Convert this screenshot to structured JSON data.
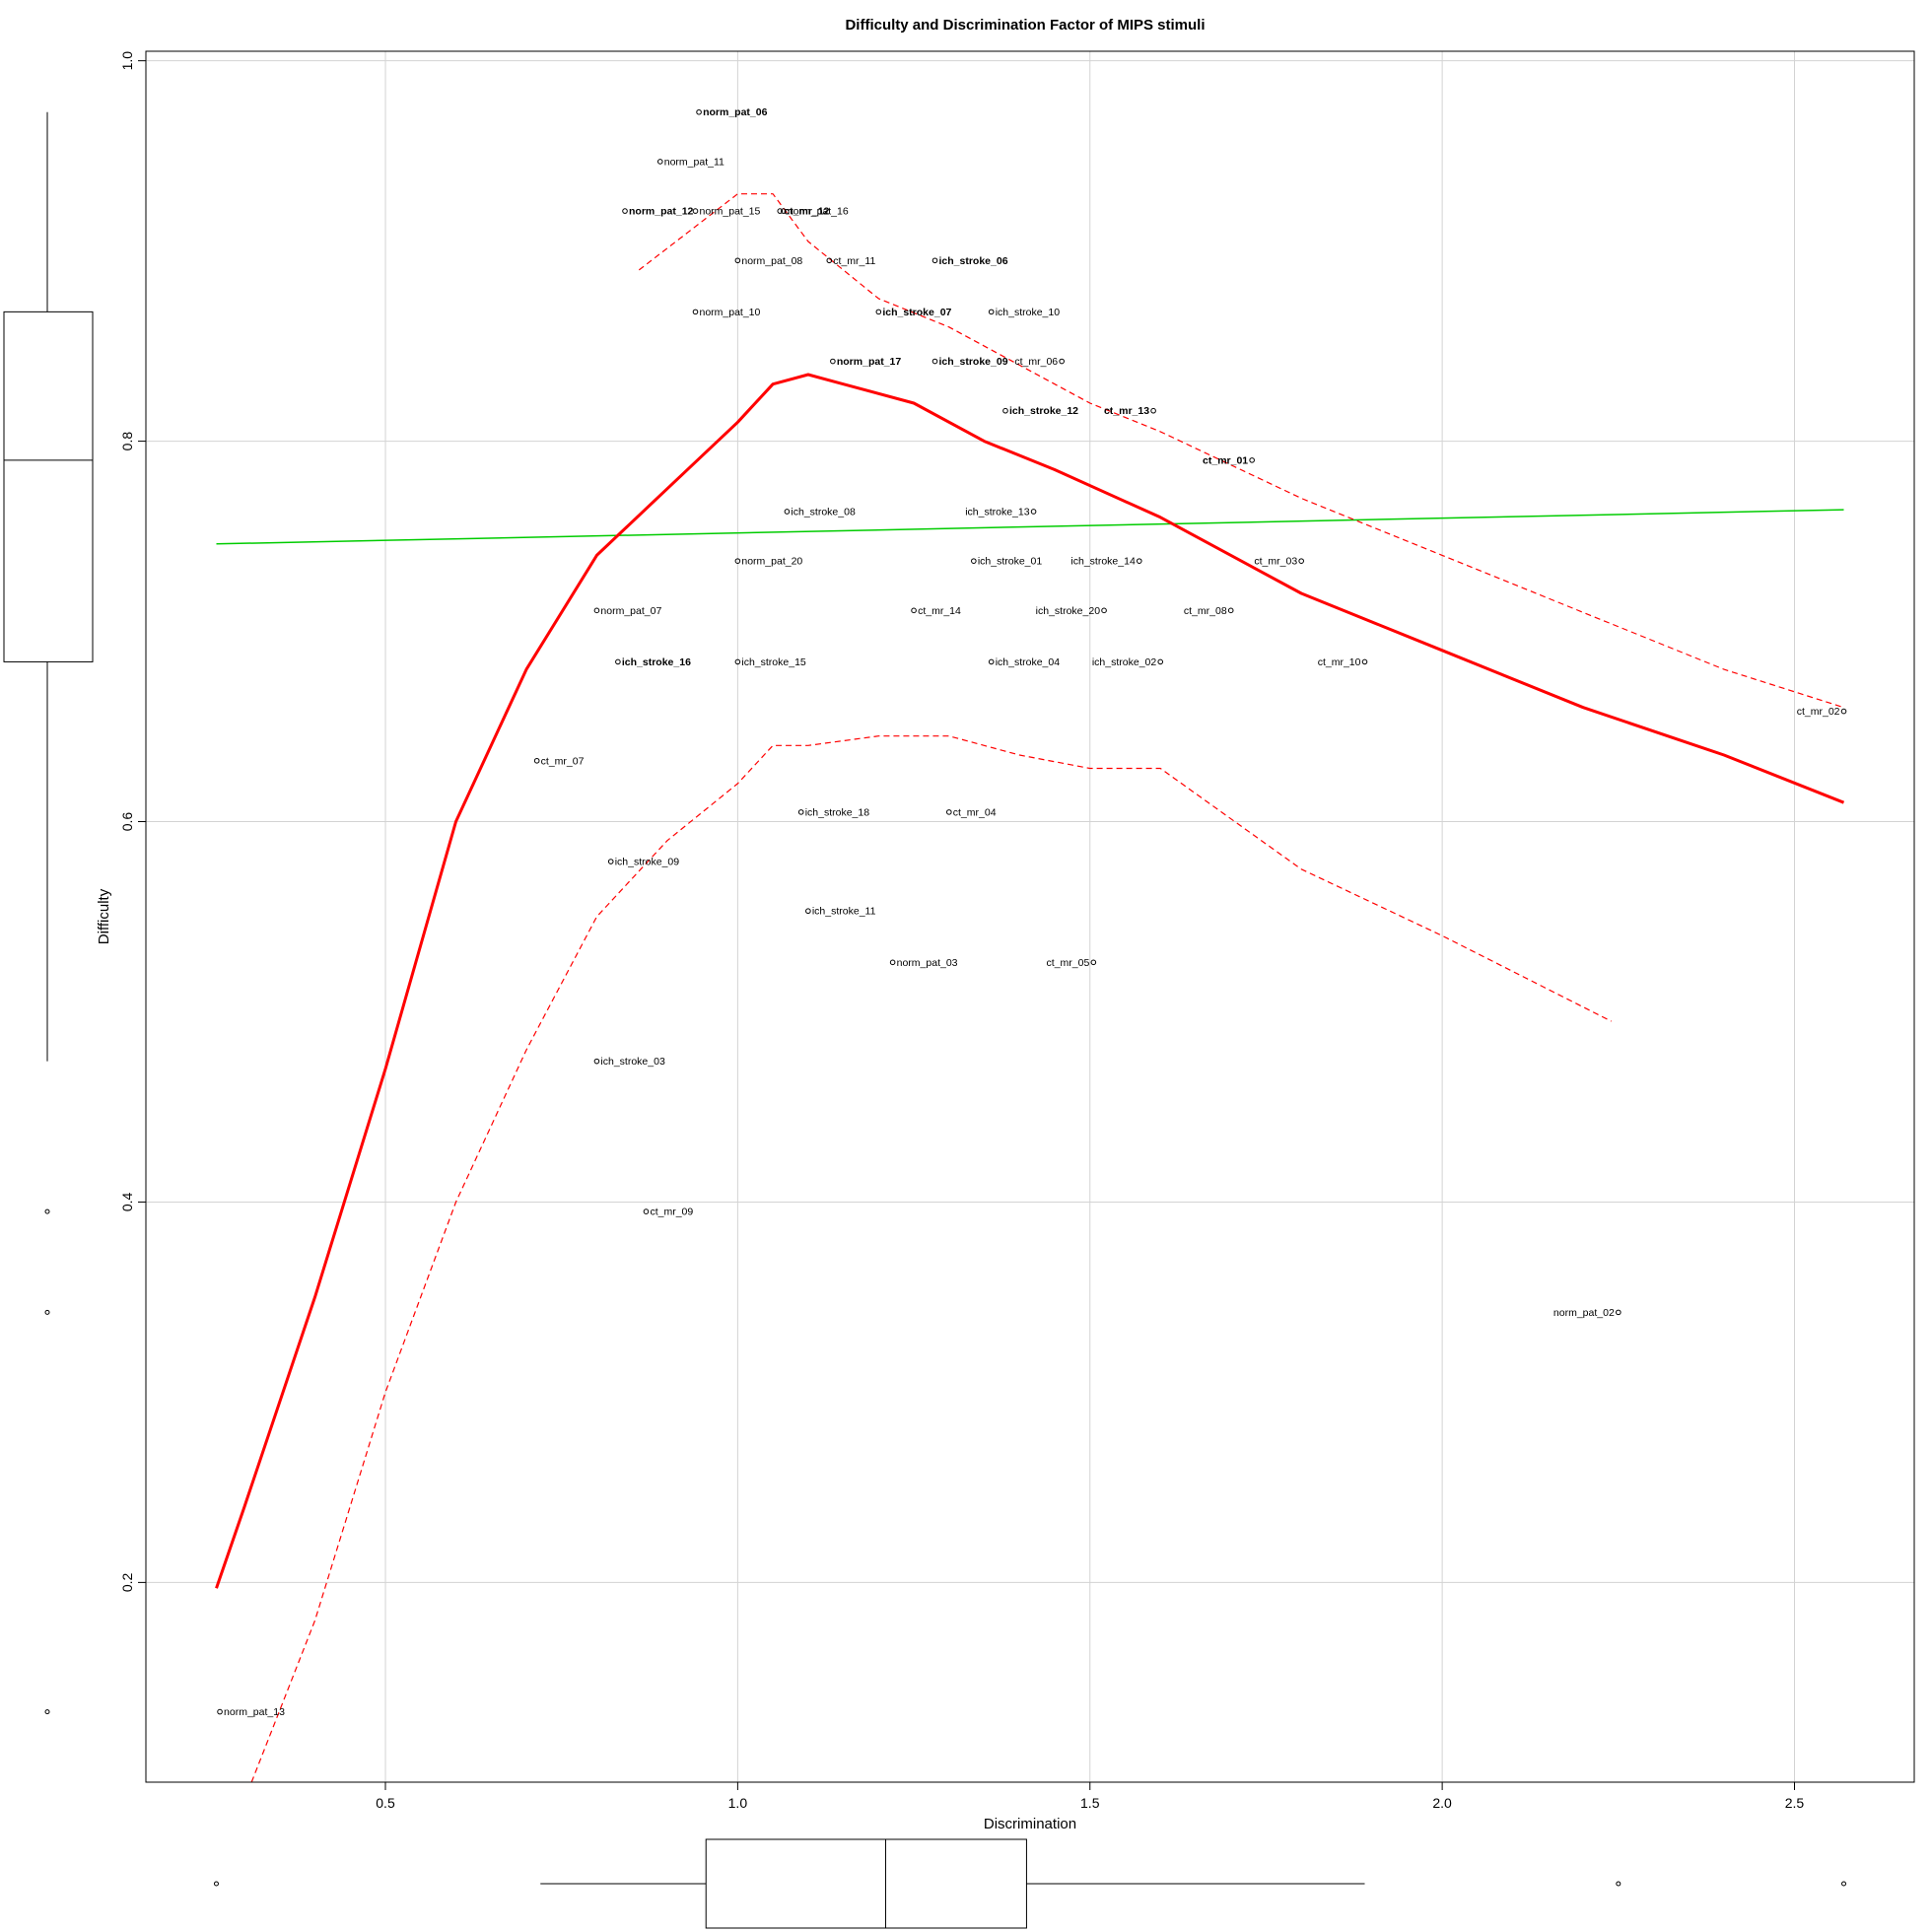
{
  "chart_data": {
    "type": "scatter",
    "title": "Difficulty and Discrimination Factor of MIPS stimuli",
    "xlabel": "Discrimination",
    "ylabel": "Difficulty",
    "xlim": [
      0.16,
      2.67
    ],
    "ylim": [
      0.095,
      1.005
    ],
    "x_ticks": [
      0.5,
      1.0,
      1.5,
      2.0,
      2.5
    ],
    "y_ticks": [
      0.2,
      0.4,
      0.6,
      0.8,
      1.0
    ],
    "x_tick_labels": [
      "0.5",
      "1.0",
      "1.5",
      "2.0",
      "2.5"
    ],
    "y_tick_labels": [
      "0.2",
      "0.4",
      "0.6",
      "0.8",
      "1.0"
    ],
    "grid": true,
    "colors": {
      "smooth": "#ff0000",
      "regression": "#00cc00",
      "grid": "#d3d3d3",
      "points": "#000000"
    },
    "points": [
      {
        "label": "norm_pat_06",
        "x": 0.945,
        "y": 0.973,
        "side": "right",
        "bold": true
      },
      {
        "label": "norm_pat_11",
        "x": 0.89,
        "y": 0.947,
        "side": "right"
      },
      {
        "label": "norm_pat_12",
        "x": 0.84,
        "y": 0.921,
        "side": "right",
        "bold": true
      },
      {
        "label": "norm_pat_15",
        "x": 0.94,
        "y": 0.921,
        "side": "right"
      },
      {
        "label": "ct_mr_12",
        "x": 1.06,
        "y": 0.921,
        "side": "right",
        "bold": true
      },
      {
        "label": "norm_pat_16",
        "x": 1.065,
        "y": 0.921,
        "side": "right"
      },
      {
        "label": "norm_pat_08",
        "x": 1.0,
        "y": 0.895,
        "side": "right"
      },
      {
        "label": "ct_mr_11",
        "x": 1.13,
        "y": 0.895,
        "side": "right"
      },
      {
        "label": "ich_stroke_06",
        "x": 1.28,
        "y": 0.895,
        "side": "right",
        "bold": true
      },
      {
        "label": "norm_pat_10",
        "x": 0.94,
        "y": 0.868,
        "side": "right"
      },
      {
        "label": "ich_stroke_07",
        "x": 1.2,
        "y": 0.868,
        "side": "right",
        "bold": true
      },
      {
        "label": "ich_stroke_10",
        "x": 1.36,
        "y": 0.868,
        "side": "right"
      },
      {
        "label": "norm_pat_17",
        "x": 1.135,
        "y": 0.842,
        "side": "right",
        "bold": true
      },
      {
        "label": "ich_stroke_09",
        "x": 1.28,
        "y": 0.842,
        "side": "right",
        "bold": true
      },
      {
        "label": "ct_mr_06",
        "x": 1.46,
        "y": 0.842,
        "side": "left"
      },
      {
        "label": "ich_stroke_12",
        "x": 1.38,
        "y": 0.816,
        "side": "right",
        "bold": true
      },
      {
        "label": "ct_mr_13",
        "x": 1.59,
        "y": 0.816,
        "side": "left",
        "bold": true
      },
      {
        "label": "ct_mr_01",
        "x": 1.73,
        "y": 0.79,
        "side": "left",
        "bold": true
      },
      {
        "label": "ich_stroke_08",
        "x": 1.07,
        "y": 0.763,
        "side": "right"
      },
      {
        "label": "ich_stroke_13",
        "x": 1.42,
        "y": 0.763,
        "side": "left"
      },
      {
        "label": "norm_pat_20",
        "x": 1.0,
        "y": 0.737,
        "side": "right"
      },
      {
        "label": "ich_stroke_01",
        "x": 1.335,
        "y": 0.737,
        "side": "right"
      },
      {
        "label": "ich_stroke_14",
        "x": 1.57,
        "y": 0.737,
        "side": "left"
      },
      {
        "label": "ct_mr_03",
        "x": 1.8,
        "y": 0.737,
        "side": "left"
      },
      {
        "label": "norm_pat_07",
        "x": 0.8,
        "y": 0.711,
        "side": "right"
      },
      {
        "label": "ct_mr_14",
        "x": 1.25,
        "y": 0.711,
        "side": "right"
      },
      {
        "label": "ich_stroke_20",
        "x": 1.52,
        "y": 0.711,
        "side": "left"
      },
      {
        "label": "ct_mr_08",
        "x": 1.7,
        "y": 0.711,
        "side": "left"
      },
      {
        "label": "ich_stroke_16",
        "x": 0.83,
        "y": 0.684,
        "side": "right",
        "bold": true
      },
      {
        "label": "ich_stroke_15",
        "x": 1.0,
        "y": 0.684,
        "side": "right"
      },
      {
        "label": "ich_stroke_04",
        "x": 1.36,
        "y": 0.684,
        "side": "right"
      },
      {
        "label": "ich_stroke_02",
        "x": 1.6,
        "y": 0.684,
        "side": "left"
      },
      {
        "label": "ct_mr_10",
        "x": 1.89,
        "y": 0.684,
        "side": "left"
      },
      {
        "label": "ct_mr_02",
        "x": 2.57,
        "y": 0.658,
        "side": "left"
      },
      {
        "label": "ct_mr_07",
        "x": 0.715,
        "y": 0.632,
        "side": "right"
      },
      {
        "label": "ich_stroke_18",
        "x": 1.09,
        "y": 0.605,
        "side": "right"
      },
      {
        "label": "ct_mr_04",
        "x": 1.3,
        "y": 0.605,
        "side": "right"
      },
      {
        "label": "ich_stroke_09",
        "x": 0.82,
        "y": 0.579,
        "side": "right"
      },
      {
        "label": "ich_stroke_11",
        "x": 1.1,
        "y": 0.553,
        "side": "right"
      },
      {
        "label": "norm_pat_03",
        "x": 1.22,
        "y": 0.526,
        "side": "right"
      },
      {
        "label": "ct_mr_05",
        "x": 1.505,
        "y": 0.526,
        "side": "left"
      },
      {
        "label": "ich_stroke_03",
        "x": 0.8,
        "y": 0.474,
        "side": "right"
      },
      {
        "label": "ct_mr_09",
        "x": 0.87,
        "y": 0.395,
        "side": "right"
      },
      {
        "label": "norm_pat_02",
        "x": 2.25,
        "y": 0.342,
        "side": "left"
      },
      {
        "label": "norm_pat_13",
        "x": 0.265,
        "y": 0.132,
        "side": "right"
      }
    ],
    "lowess": {
      "x": [
        0.26,
        0.3,
        0.4,
        0.5,
        0.6,
        0.7,
        0.8,
        0.9,
        1.0,
        1.05,
        1.1,
        1.15,
        1.25,
        1.35,
        1.45,
        1.6,
        1.8,
        2.0,
        2.2,
        2.4,
        2.57
      ],
      "y": [
        0.197,
        0.24,
        0.35,
        0.47,
        0.6,
        0.68,
        0.74,
        0.775,
        0.81,
        0.83,
        0.835,
        0.83,
        0.82,
        0.8,
        0.785,
        0.76,
        0.72,
        0.69,
        0.66,
        0.635,
        0.61
      ]
    },
    "lowess_upper": {
      "x": [
        0.86,
        0.93,
        1.0,
        1.05,
        1.1,
        1.2,
        1.3,
        1.4,
        1.5,
        1.6,
        1.8,
        2.0,
        2.2,
        2.4,
        2.57
      ],
      "y": [
        0.89,
        0.91,
        0.93,
        0.93,
        0.905,
        0.875,
        0.86,
        0.84,
        0.82,
        0.805,
        0.77,
        0.74,
        0.71,
        0.68,
        0.66
      ]
    },
    "lowess_lower": {
      "x": [
        0.31,
        0.4,
        0.5,
        0.6,
        0.7,
        0.8,
        0.9,
        1.0,
        1.05,
        1.1,
        1.2,
        1.3,
        1.4,
        1.5,
        1.6,
        1.8,
        2.0,
        2.24
      ],
      "y": [
        0.095,
        0.18,
        0.3,
        0.4,
        0.48,
        0.55,
        0.59,
        0.62,
        0.64,
        0.64,
        0.645,
        0.645,
        0.635,
        0.628,
        0.628,
        0.575,
        0.54,
        0.495
      ]
    },
    "regression": {
      "x": [
        0.26,
        2.57
      ],
      "y": [
        0.746,
        0.764
      ]
    },
    "boxplot_x": {
      "min": 0.72,
      "q1": 0.955,
      "median": 1.21,
      "q3": 1.41,
      "max": 1.89,
      "outliers": [
        0.26,
        2.25,
        2.57
      ]
    },
    "boxplot_y": {
      "min": 0.474,
      "q1": 0.684,
      "median": 0.79,
      "q3": 0.868,
      "max": 0.973,
      "outliers": [
        0.395,
        0.342,
        0.132
      ]
    }
  }
}
